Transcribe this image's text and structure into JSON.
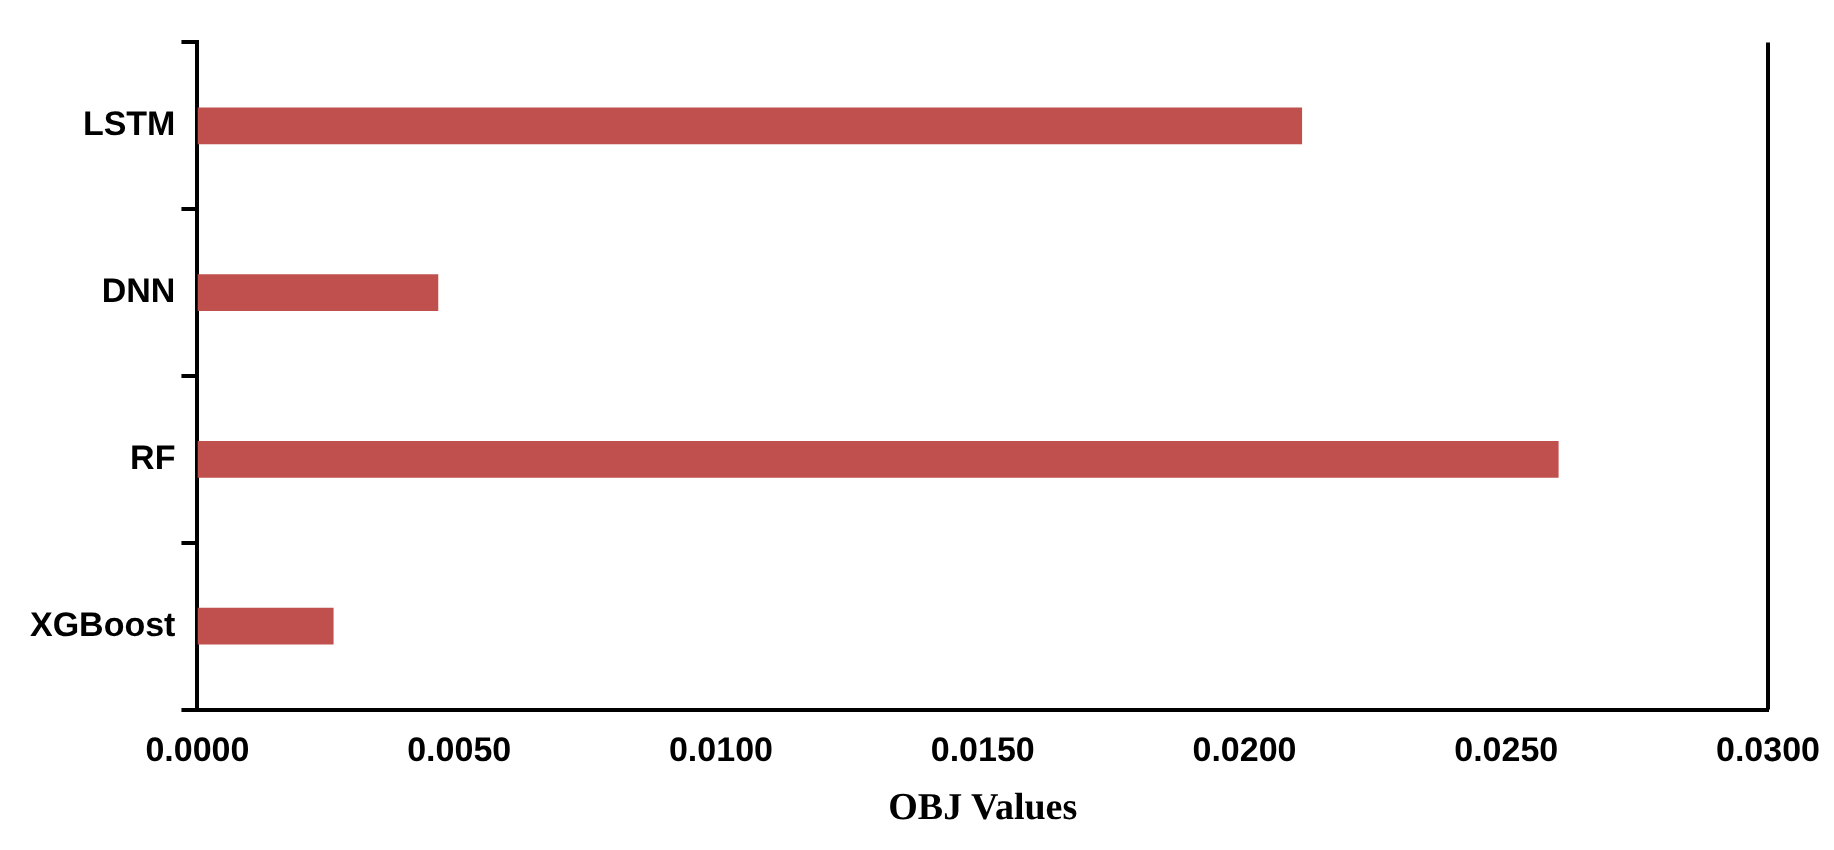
{
  "chart_data": {
    "type": "bar",
    "orientation": "horizontal",
    "xlabel": "OBJ Values",
    "categories": [
      "LSTM",
      "DNN",
      "RF",
      "XGBoost"
    ],
    "series": [
      {
        "color": "#c0504d",
        "values": [
          0.0211,
          0.0046,
          0.026,
          0.0026
        ]
      }
    ],
    "xlim": [
      0,
      0.03
    ],
    "xticks": [
      {
        "value": 0,
        "label": "0.0000"
      },
      {
        "value": 0.005,
        "label": "0.0050"
      },
      {
        "value": 0.01,
        "label": "0.0100"
      },
      {
        "value": 0.015,
        "label": "0.0150"
      },
      {
        "value": 0.02,
        "label": "0.0200"
      },
      {
        "value": 0.025,
        "label": "0.0250"
      },
      {
        "value": 0.03,
        "label": "0.0300"
      }
    ],
    "grid": false,
    "legend": false
  }
}
